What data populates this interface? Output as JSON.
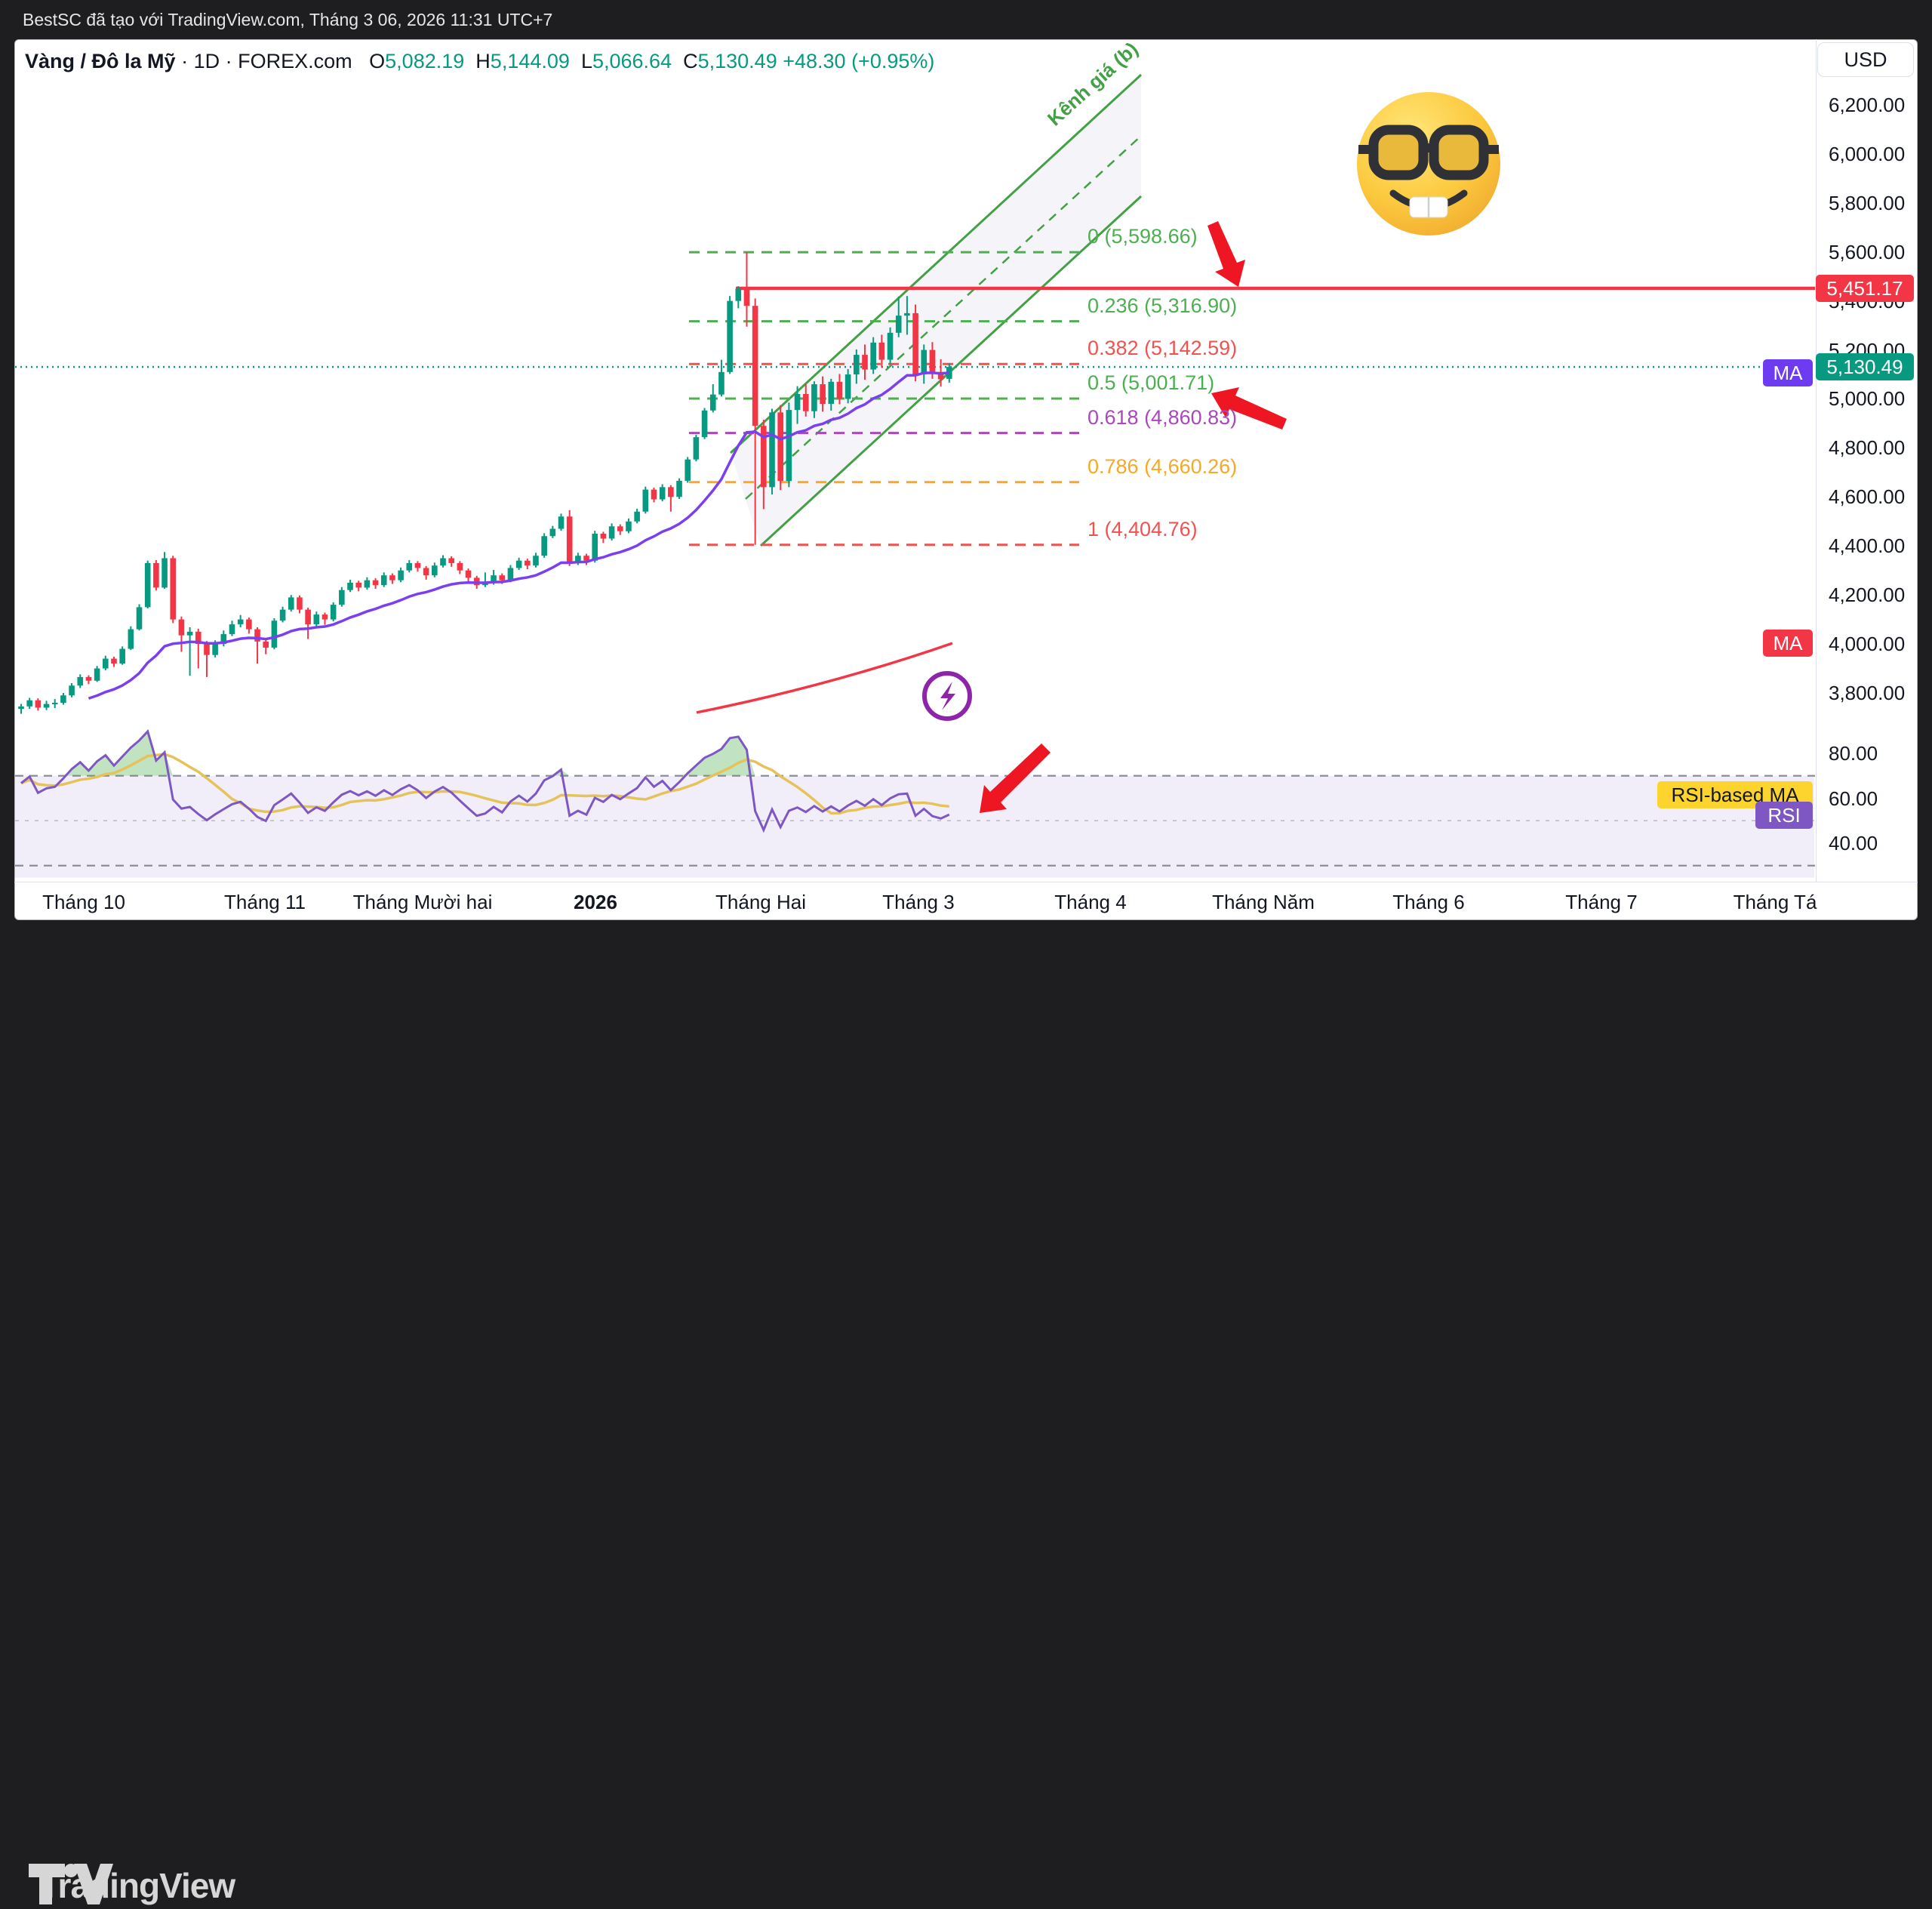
{
  "top_bar": {
    "text": "BestSC đã tạo với TradingView.com, Tháng 3 06, 2026 11:31 UTC+7"
  },
  "header": {
    "symbol": "Vàng / Đô la Mỹ",
    "separator": "·",
    "interval": "1D",
    "exchange": "FOREX.com",
    "o_label": "O",
    "o_value": "5,082.19",
    "h_label": "H",
    "h_value": "5,144.09",
    "l_label": "L",
    "l_value": "5,066.64",
    "c_label": "C",
    "c_value": "5,130.49",
    "change": "+48.30 (+0.95%)",
    "currency_button": "USD"
  },
  "badges": {
    "alert_price": "5,451.17",
    "last_price": "5,130.49",
    "ma_fast_label": "MA",
    "ma_slow_label": "MA",
    "rsi_ma_label": "RSI-based MA",
    "rsi_label": "RSI"
  },
  "colors": {
    "up": "#089981",
    "down": "#f23645",
    "alert": "#f23645",
    "last_line": "#089981",
    "ema": "#7b3ff2",
    "red_ma": "#f23645",
    "rsi": "#7e57c2",
    "rsi_ma": "#e5c35a",
    "rsi_ma_badge": "#fdd42e",
    "channel": "#43a047",
    "text": "#131722"
  },
  "footer": {
    "logo_text": "TradingView"
  },
  "emoji": "nerd-face-emoji",
  "chart_data": {
    "type": "candlestick",
    "title": "Vàng / Đô la Mỹ (XAU/USD) 1D FOREX.com",
    "ylabel": "USD",
    "ylim": [
      3700,
      6300
    ],
    "grid": false,
    "price_ticks": [
      {
        "v": 6200,
        "t": "6,200.00"
      },
      {
        "v": 6000,
        "t": "6,000.00"
      },
      {
        "v": 5800,
        "t": "5,800.00"
      },
      {
        "v": 5600,
        "t": "5,600.00"
      },
      {
        "v": 5400,
        "t": "5,400.00"
      },
      {
        "v": 5200,
        "t": "5,200.00"
      },
      {
        "v": 5000,
        "t": "5,000.00"
      },
      {
        "v": 4800,
        "t": "4,800.00"
      },
      {
        "v": 4600,
        "t": "4,600.00"
      },
      {
        "v": 4400,
        "t": "4,400.00"
      },
      {
        "v": 4200,
        "t": "4,200.00"
      },
      {
        "v": 4000,
        "t": "4,000.00"
      },
      {
        "v": 3800,
        "t": "3,800.00"
      }
    ],
    "rsi_ticks": [
      {
        "v": 80,
        "t": "80.00"
      },
      {
        "v": 60,
        "t": "60.00"
      },
      {
        "v": 40,
        "t": "40.00"
      }
    ],
    "time_labels": [
      {
        "text": "Tháng 10",
        "bold": false
      },
      {
        "text": "Tháng 11",
        "bold": false
      },
      {
        "text": "Tháng Mười hai",
        "bold": false
      },
      {
        "text": "2026",
        "bold": true
      },
      {
        "text": "Tháng Hai",
        "bold": false
      },
      {
        "text": "Tháng 3",
        "bold": false
      },
      {
        "text": "Tháng 4",
        "bold": false
      },
      {
        "text": "Tháng Năm",
        "bold": false
      },
      {
        "text": "Tháng 6",
        "bold": false
      },
      {
        "text": "Tháng 7",
        "bold": false
      },
      {
        "text": "Tháng Tá",
        "bold": false
      }
    ],
    "fib_levels": [
      {
        "ratio": "0",
        "price": 5598.66,
        "label": "0 (5,598.66)",
        "color": "#4caf50"
      },
      {
        "ratio": "0.236",
        "price": 5316.9,
        "label": "0.236 (5,316.90)",
        "color": "#4caf50"
      },
      {
        "ratio": "0.382",
        "price": 5142.59,
        "label": "0.382 (5,142.59)",
        "color": "#ef5350"
      },
      {
        "ratio": "0.5",
        "price": 5001.71,
        "label": "0.5 (5,001.71)",
        "color": "#4caf50"
      },
      {
        "ratio": "0.618",
        "price": 4860.83,
        "label": "0.618 (4,860.83)",
        "color": "#ab47bc"
      },
      {
        "ratio": "0.786",
        "price": 4660.26,
        "label": "0.786 (4,660.26)",
        "color": "#f9a825"
      },
      {
        "ratio": "1",
        "price": 4404.76,
        "label": "1 (4,404.76)",
        "color": "#ef5350"
      }
    ],
    "alert_line_price": 5451.17,
    "last_price": 5130.49,
    "channel": {
      "label": "Kênh giá (b)",
      "upper": [
        968,
        600,
        1512,
        99
      ],
      "lower": [
        1008,
        723,
        1512,
        260
      ],
      "middle": [
        988,
        661,
        1512,
        180
      ]
    },
    "red_ma_segment": {
      "start_price": 3720,
      "end_price": 4003
    },
    "indicators": {
      "ema_period": 20,
      "rsi_period": 14,
      "rsi_ma_period": 10,
      "rsi_bands": [
        70,
        50,
        30
      ],
      "rsi_end": 52.5,
      "rsi_ma_end": 61.5
    },
    "candles": [
      [
        3735,
        3755,
        3715,
        3745
      ],
      [
        3745,
        3780,
        3735,
        3770
      ],
      [
        3770,
        3778,
        3728,
        3740
      ],
      [
        3740,
        3768,
        3730,
        3755
      ],
      [
        3755,
        3775,
        3738,
        3760
      ],
      [
        3760,
        3800,
        3752,
        3790
      ],
      [
        3790,
        3840,
        3782,
        3830
      ],
      [
        3830,
        3876,
        3820,
        3865
      ],
      [
        3865,
        3872,
        3836,
        3850
      ],
      [
        3850,
        3910,
        3845,
        3900
      ],
      [
        3900,
        3952,
        3892,
        3940
      ],
      [
        3940,
        3948,
        3906,
        3920
      ],
      [
        3920,
        3990,
        3915,
        3980
      ],
      [
        3980,
        4072,
        3975,
        4060
      ],
      [
        4060,
        4162,
        4055,
        4150
      ],
      [
        4150,
        4340,
        4145,
        4330
      ],
      [
        4330,
        4342,
        4218,
        4230
      ],
      [
        4230,
        4375,
        4225,
        4350
      ],
      [
        4350,
        4360,
        4085,
        4100
      ],
      [
        4100,
        4112,
        3968,
        4035
      ],
      [
        4035,
        4068,
        3870,
        4050
      ],
      [
        4050,
        4062,
        3900,
        4000
      ],
      [
        4000,
        4012,
        3865,
        3955
      ],
      [
        3955,
        4015,
        3945,
        4000
      ],
      [
        4000,
        4055,
        3990,
        4040
      ],
      [
        4040,
        4095,
        4032,
        4080
      ],
      [
        4080,
        4118,
        4068,
        4100
      ],
      [
        4100,
        4108,
        4042,
        4060
      ],
      [
        4060,
        4068,
        3920,
        4010
      ],
      [
        4010,
        4022,
        3958,
        3985
      ],
      [
        3985,
        4105,
        3978,
        4095
      ],
      [
        4095,
        4152,
        4088,
        4140
      ],
      [
        4140,
        4200,
        4132,
        4190
      ],
      [
        4190,
        4198,
        4125,
        4140
      ],
      [
        4140,
        4148,
        4020,
        4080
      ],
      [
        4080,
        4132,
        4072,
        4120
      ],
      [
        4120,
        4128,
        4078,
        4100
      ],
      [
        4100,
        4170,
        4092,
        4160
      ],
      [
        4160,
        4232,
        4152,
        4220
      ],
      [
        4220,
        4262,
        4212,
        4250
      ],
      [
        4250,
        4258,
        4215,
        4230
      ],
      [
        4230,
        4272,
        4222,
        4260
      ],
      [
        4260,
        4268,
        4225,
        4240
      ],
      [
        4240,
        4292,
        4232,
        4280
      ],
      [
        4280,
        4288,
        4245,
        4260
      ],
      [
        4260,
        4312,
        4252,
        4300
      ],
      [
        4300,
        4342,
        4292,
        4330
      ],
      [
        4330,
        4338,
        4295,
        4310
      ],
      [
        4310,
        4318,
        4262,
        4280
      ],
      [
        4280,
        4332,
        4272,
        4320
      ],
      [
        4320,
        4362,
        4312,
        4350
      ],
      [
        4350,
        4358,
        4315,
        4330
      ],
      [
        4330,
        4338,
        4285,
        4300
      ],
      [
        4300,
        4308,
        4255,
        4270
      ],
      [
        4270,
        4278,
        4225,
        4240
      ],
      [
        4240,
        4292,
        4232,
        4250
      ],
      [
        4250,
        4302,
        4242,
        4280
      ],
      [
        4280,
        4288,
        4245,
        4260
      ],
      [
        4260,
        4322,
        4252,
        4310
      ],
      [
        4310,
        4352,
        4302,
        4340
      ],
      [
        4340,
        4348,
        4305,
        4320
      ],
      [
        4320,
        4372,
        4312,
        4360
      ],
      [
        4360,
        4452,
        4352,
        4440
      ],
      [
        4440,
        4482,
        4432,
        4470
      ],
      [
        4470,
        4532,
        4462,
        4520
      ],
      [
        4520,
        4546,
        4318,
        4330
      ],
      [
        4330,
        4372,
        4322,
        4360
      ],
      [
        4360,
        4368,
        4322,
        4340
      ],
      [
        4340,
        4462,
        4332,
        4450
      ],
      [
        4450,
        4458,
        4412,
        4430
      ],
      [
        4430,
        4492,
        4422,
        4480
      ],
      [
        4480,
        4488,
        4445,
        4460
      ],
      [
        4460,
        4512,
        4452,
        4500
      ],
      [
        4500,
        4552,
        4492,
        4540
      ],
      [
        4540,
        4642,
        4532,
        4630
      ],
      [
        4630,
        4638,
        4578,
        4590
      ],
      [
        4590,
        4652,
        4582,
        4640
      ],
      [
        4640,
        4648,
        4540,
        4600
      ],
      [
        4600,
        4676,
        4592,
        4666
      ],
      [
        4666,
        4763,
        4658,
        4753
      ],
      [
        4753,
        4854,
        4745,
        4844
      ],
      [
        4844,
        4963,
        4836,
        4953
      ],
      [
        4953,
        5060,
        4945,
        5018
      ],
      [
        5018,
        5160,
        5010,
        5110
      ],
      [
        5110,
        5420,
        5102,
        5400
      ],
      [
        5400,
        5460,
        5370,
        5450
      ],
      [
        5450,
        5598.66,
        5295,
        5380
      ],
      [
        5380,
        5410,
        4404.76,
        4890
      ],
      [
        4890,
        4915,
        4550,
        4640
      ],
      [
        4640,
        4960,
        4610,
        4945
      ],
      [
        4945,
        4975,
        4628,
        4665
      ],
      [
        4665,
        4985,
        4640,
        4955
      ],
      [
        4955,
        5052,
        4898,
        5020
      ],
      [
        5020,
        5062,
        4928,
        4950
      ],
      [
        4950,
        5072,
        4922,
        5060
      ],
      [
        5060,
        5092,
        4948,
        4980
      ],
      [
        4980,
        5082,
        4952,
        5070
      ],
      [
        5070,
        5102,
        4978,
        5000
      ],
      [
        5000,
        5122,
        4982,
        5100
      ],
      [
        5100,
        5202,
        5062,
        5180
      ],
      [
        5180,
        5222,
        5078,
        5120
      ],
      [
        5120,
        5252,
        5102,
        5230
      ],
      [
        5230,
        5262,
        5128,
        5160
      ],
      [
        5160,
        5292,
        5142,
        5270
      ],
      [
        5270,
        5418,
        5252,
        5340
      ],
      [
        5340,
        5420,
        5262,
        5350
      ],
      [
        5350,
        5385,
        5072,
        5100
      ],
      [
        5100,
        5222,
        5062,
        5200
      ],
      [
        5200,
        5232,
        5082,
        5110
      ],
      [
        5110,
        5162,
        5050,
        5080
      ],
      [
        5082.19,
        5144.09,
        5066.64,
        5130.49
      ]
    ]
  }
}
